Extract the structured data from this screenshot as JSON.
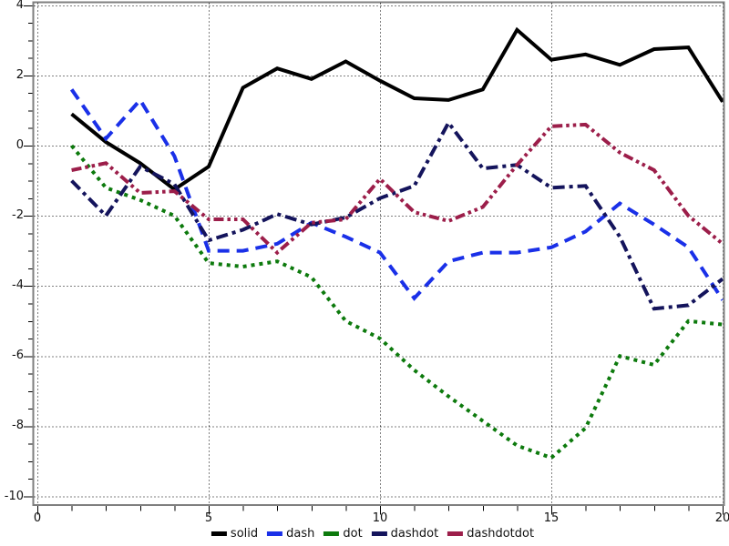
{
  "figure": {
    "background": "#ffffff",
    "frame_color": "#7f7f7f",
    "grid_color": "#000000",
    "tick_color": "#000000",
    "tick_label_color": "#111111"
  },
  "chart_data": {
    "type": "line",
    "title": "",
    "xlabel": "",
    "ylabel": "",
    "grid": true,
    "legend_position": "bottom-center",
    "xlim": [
      -0.15,
      20.1
    ],
    "ylim": [
      -10.3,
      4.15
    ],
    "x_ticks": [
      0,
      5,
      10,
      15,
      20
    ],
    "x_tick_labels": [
      "0",
      "5",
      "10",
      "15",
      "20"
    ],
    "y_ticks": [
      4,
      2,
      0,
      -2,
      -4,
      -6,
      -8,
      -10
    ],
    "y_tick_labels": [
      "4",
      "2",
      "0",
      "-2",
      "-4",
      "-6",
      "-8",
      "-10"
    ],
    "x_minor_step": 1,
    "y_minor_step": 0.5,
    "x": [
      1,
      2,
      3,
      4,
      5,
      6,
      7,
      8,
      9,
      10,
      11,
      12,
      13,
      14,
      15,
      16,
      17,
      18,
      19,
      20
    ],
    "series": [
      {
        "name": "solid",
        "color": "#000000",
        "linestyle": "solid",
        "values": [
          0.9,
          0.1,
          -0.5,
          -1.25,
          -0.6,
          1.65,
          2.2,
          1.9,
          2.4,
          1.85,
          1.35,
          1.3,
          1.6,
          3.3,
          2.45,
          2.6,
          2.3,
          2.75,
          2.8,
          1.25
        ]
      },
      {
        "name": "dash",
        "color": "#1a30e8",
        "linestyle": "dash",
        "values": [
          1.6,
          0.2,
          1.3,
          -0.3,
          -3.0,
          -3.0,
          -2.8,
          -2.2,
          -2.6,
          -3.05,
          -4.35,
          -3.3,
          -3.05,
          -3.05,
          -2.9,
          -2.45,
          -1.65,
          -2.25,
          -2.9,
          -4.4
        ]
      },
      {
        "name": "dot",
        "color": "#0d7a0d",
        "linestyle": "dot",
        "values": [
          0.0,
          -1.2,
          -1.55,
          -2.0,
          -3.35,
          -3.45,
          -3.3,
          -3.75,
          -5.0,
          -5.5,
          -6.4,
          -7.15,
          -7.85,
          -8.55,
          -8.9,
          -8.05,
          -6.0,
          -6.25,
          -5.0,
          -5.1
        ]
      },
      {
        "name": "dashdot",
        "color": "#14145c",
        "linestyle": "dashdot",
        "values": [
          -1.0,
          -2.0,
          -0.6,
          -1.1,
          -2.7,
          -2.4,
          -1.95,
          -2.25,
          -2.05,
          -1.5,
          -1.15,
          0.65,
          -0.65,
          -0.55,
          -1.2,
          -1.15,
          -2.6,
          -4.65,
          -4.55,
          -3.8
        ]
      },
      {
        "name": "dashdotdot",
        "color": "#9c1e4a",
        "linestyle": "dashdotdot",
        "values": [
          -0.7,
          -0.5,
          -1.35,
          -1.3,
          -2.1,
          -2.1,
          -3.05,
          -2.2,
          -2.1,
          -0.95,
          -1.9,
          -2.15,
          -1.75,
          -0.55,
          0.55,
          0.6,
          -0.2,
          -0.7,
          -2.0,
          -2.8
        ]
      }
    ]
  }
}
